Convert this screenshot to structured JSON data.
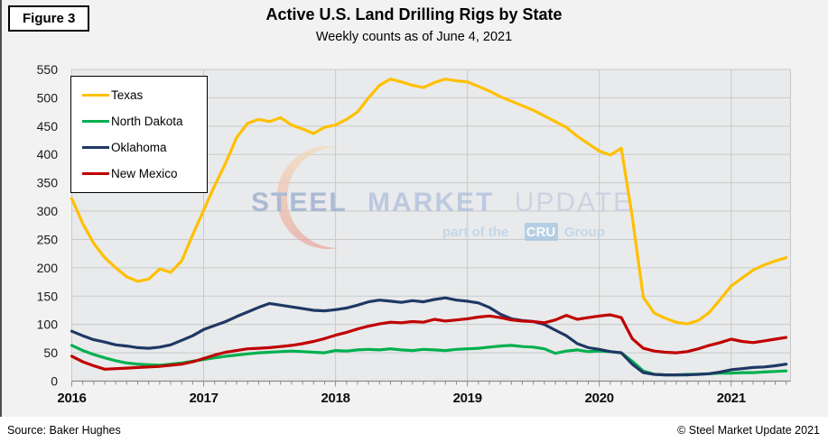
{
  "figure_label": "Figure 3",
  "title": "Active U.S. Land Drilling Rigs by State",
  "subtitle": "Weekly counts as of June 4, 2021",
  "footer": {
    "source": "Source: Baker Hughes",
    "copyright": "© Steel Market Update 2021"
  },
  "watermark": {
    "word1": "STEEL",
    "word2": "MARKET",
    "word3": "UPDATE",
    "sub_prefix": "part of the",
    "badge": "CRU",
    "sub_suffix": "Group",
    "word1_color": "#97aacd",
    "word2_color": "#aebedb",
    "word3_color": "#c2cce1",
    "sub_color": "#b6d2ea",
    "badge_color": "#a3c7e3",
    "badge_text_color": "#ffffff",
    "crescent_top_color": "#f6d9b4",
    "crescent_bottom_color": "#ea9d96"
  },
  "colors": {
    "page_background": "#f2f2f2",
    "plot_background": "#e9eaeb",
    "gridline": "#c9c9c9",
    "axis": "#8c8c8c",
    "footer_background": "#ffffff"
  },
  "chart_data": {
    "type": "line",
    "title": "Active U.S. Land Drilling Rigs by State",
    "subtitle": "Weekly counts as of June 4, 2021",
    "xlabel": "",
    "ylabel": "",
    "ylim": [
      0,
      550
    ],
    "y_ticks": [
      0,
      50,
      100,
      150,
      200,
      250,
      300,
      350,
      400,
      450,
      500,
      550
    ],
    "x_ticks": [
      2016,
      2017,
      2018,
      2019,
      2020,
      2021
    ],
    "x_start": 2016,
    "x_axis_end": 2021.45,
    "points_per_year": 12,
    "grid": true,
    "legend_position": "upper-left",
    "series": [
      {
        "name": "Texas",
        "color": "#FFC000",
        "values": [
          322,
          278,
          243,
          218,
          200,
          184,
          176,
          180,
          198,
          192,
          212,
          258,
          302,
          345,
          385,
          430,
          455,
          462,
          458,
          465,
          452,
          445,
          437,
          448,
          452,
          462,
          475,
          500,
          522,
          533,
          528,
          522,
          518,
          527,
          533,
          530,
          528,
          520,
          512,
          502,
          494,
          486,
          478,
          468,
          458,
          448,
          432,
          419,
          406,
          399,
          411,
          290,
          148,
          120,
          111,
          104,
          101,
          107,
          121,
          144,
          168,
          182,
          196,
          205,
          212,
          218
        ]
      },
      {
        "name": "North Dakota",
        "color": "#00B050",
        "values": [
          63,
          54,
          47,
          41,
          36,
          32,
          30,
          29,
          28,
          30,
          32,
          35,
          38,
          41,
          44,
          46,
          48,
          50,
          51,
          52,
          53,
          52,
          51,
          50,
          54,
          53,
          55,
          56,
          55,
          57,
          55,
          54,
          56,
          55,
          54,
          56,
          57,
          58,
          60,
          62,
          63,
          61,
          60,
          57,
          49,
          53,
          55,
          52,
          53,
          52,
          50,
          35,
          18,
          12,
          11,
          11,
          12,
          12,
          13,
          14,
          14,
          15,
          15,
          16,
          17,
          18
        ]
      },
      {
        "name": "Oklahoma",
        "color": "#1F3864",
        "values": [
          88,
          80,
          73,
          69,
          64,
          62,
          59,
          58,
          60,
          64,
          72,
          80,
          91,
          98,
          105,
          114,
          122,
          130,
          137,
          134,
          131,
          128,
          125,
          124,
          126,
          129,
          134,
          140,
          143,
          141,
          139,
          142,
          140,
          144,
          147,
          143,
          141,
          138,
          130,
          118,
          110,
          107,
          105,
          100,
          90,
          80,
          66,
          59,
          56,
          52,
          50,
          30,
          15,
          12,
          11,
          11,
          11,
          12,
          13,
          16,
          20,
          22,
          24,
          25,
          27,
          30
        ]
      },
      {
        "name": "New Mexico",
        "color": "#C00000",
        "values": [
          44,
          34,
          27,
          21,
          22,
          23,
          24,
          25,
          26,
          28,
          30,
          34,
          40,
          46,
          51,
          54,
          57,
          58,
          59,
          61,
          63,
          66,
          70,
          75,
          81,
          86,
          92,
          97,
          101,
          104,
          103,
          105,
          104,
          109,
          106,
          108,
          110,
          113,
          115,
          112,
          108,
          106,
          105,
          103,
          108,
          116,
          109,
          112,
          115,
          117,
          112,
          75,
          58,
          53,
          51,
          50,
          52,
          57,
          63,
          68,
          74,
          70,
          68,
          71,
          74,
          77
        ]
      }
    ]
  }
}
